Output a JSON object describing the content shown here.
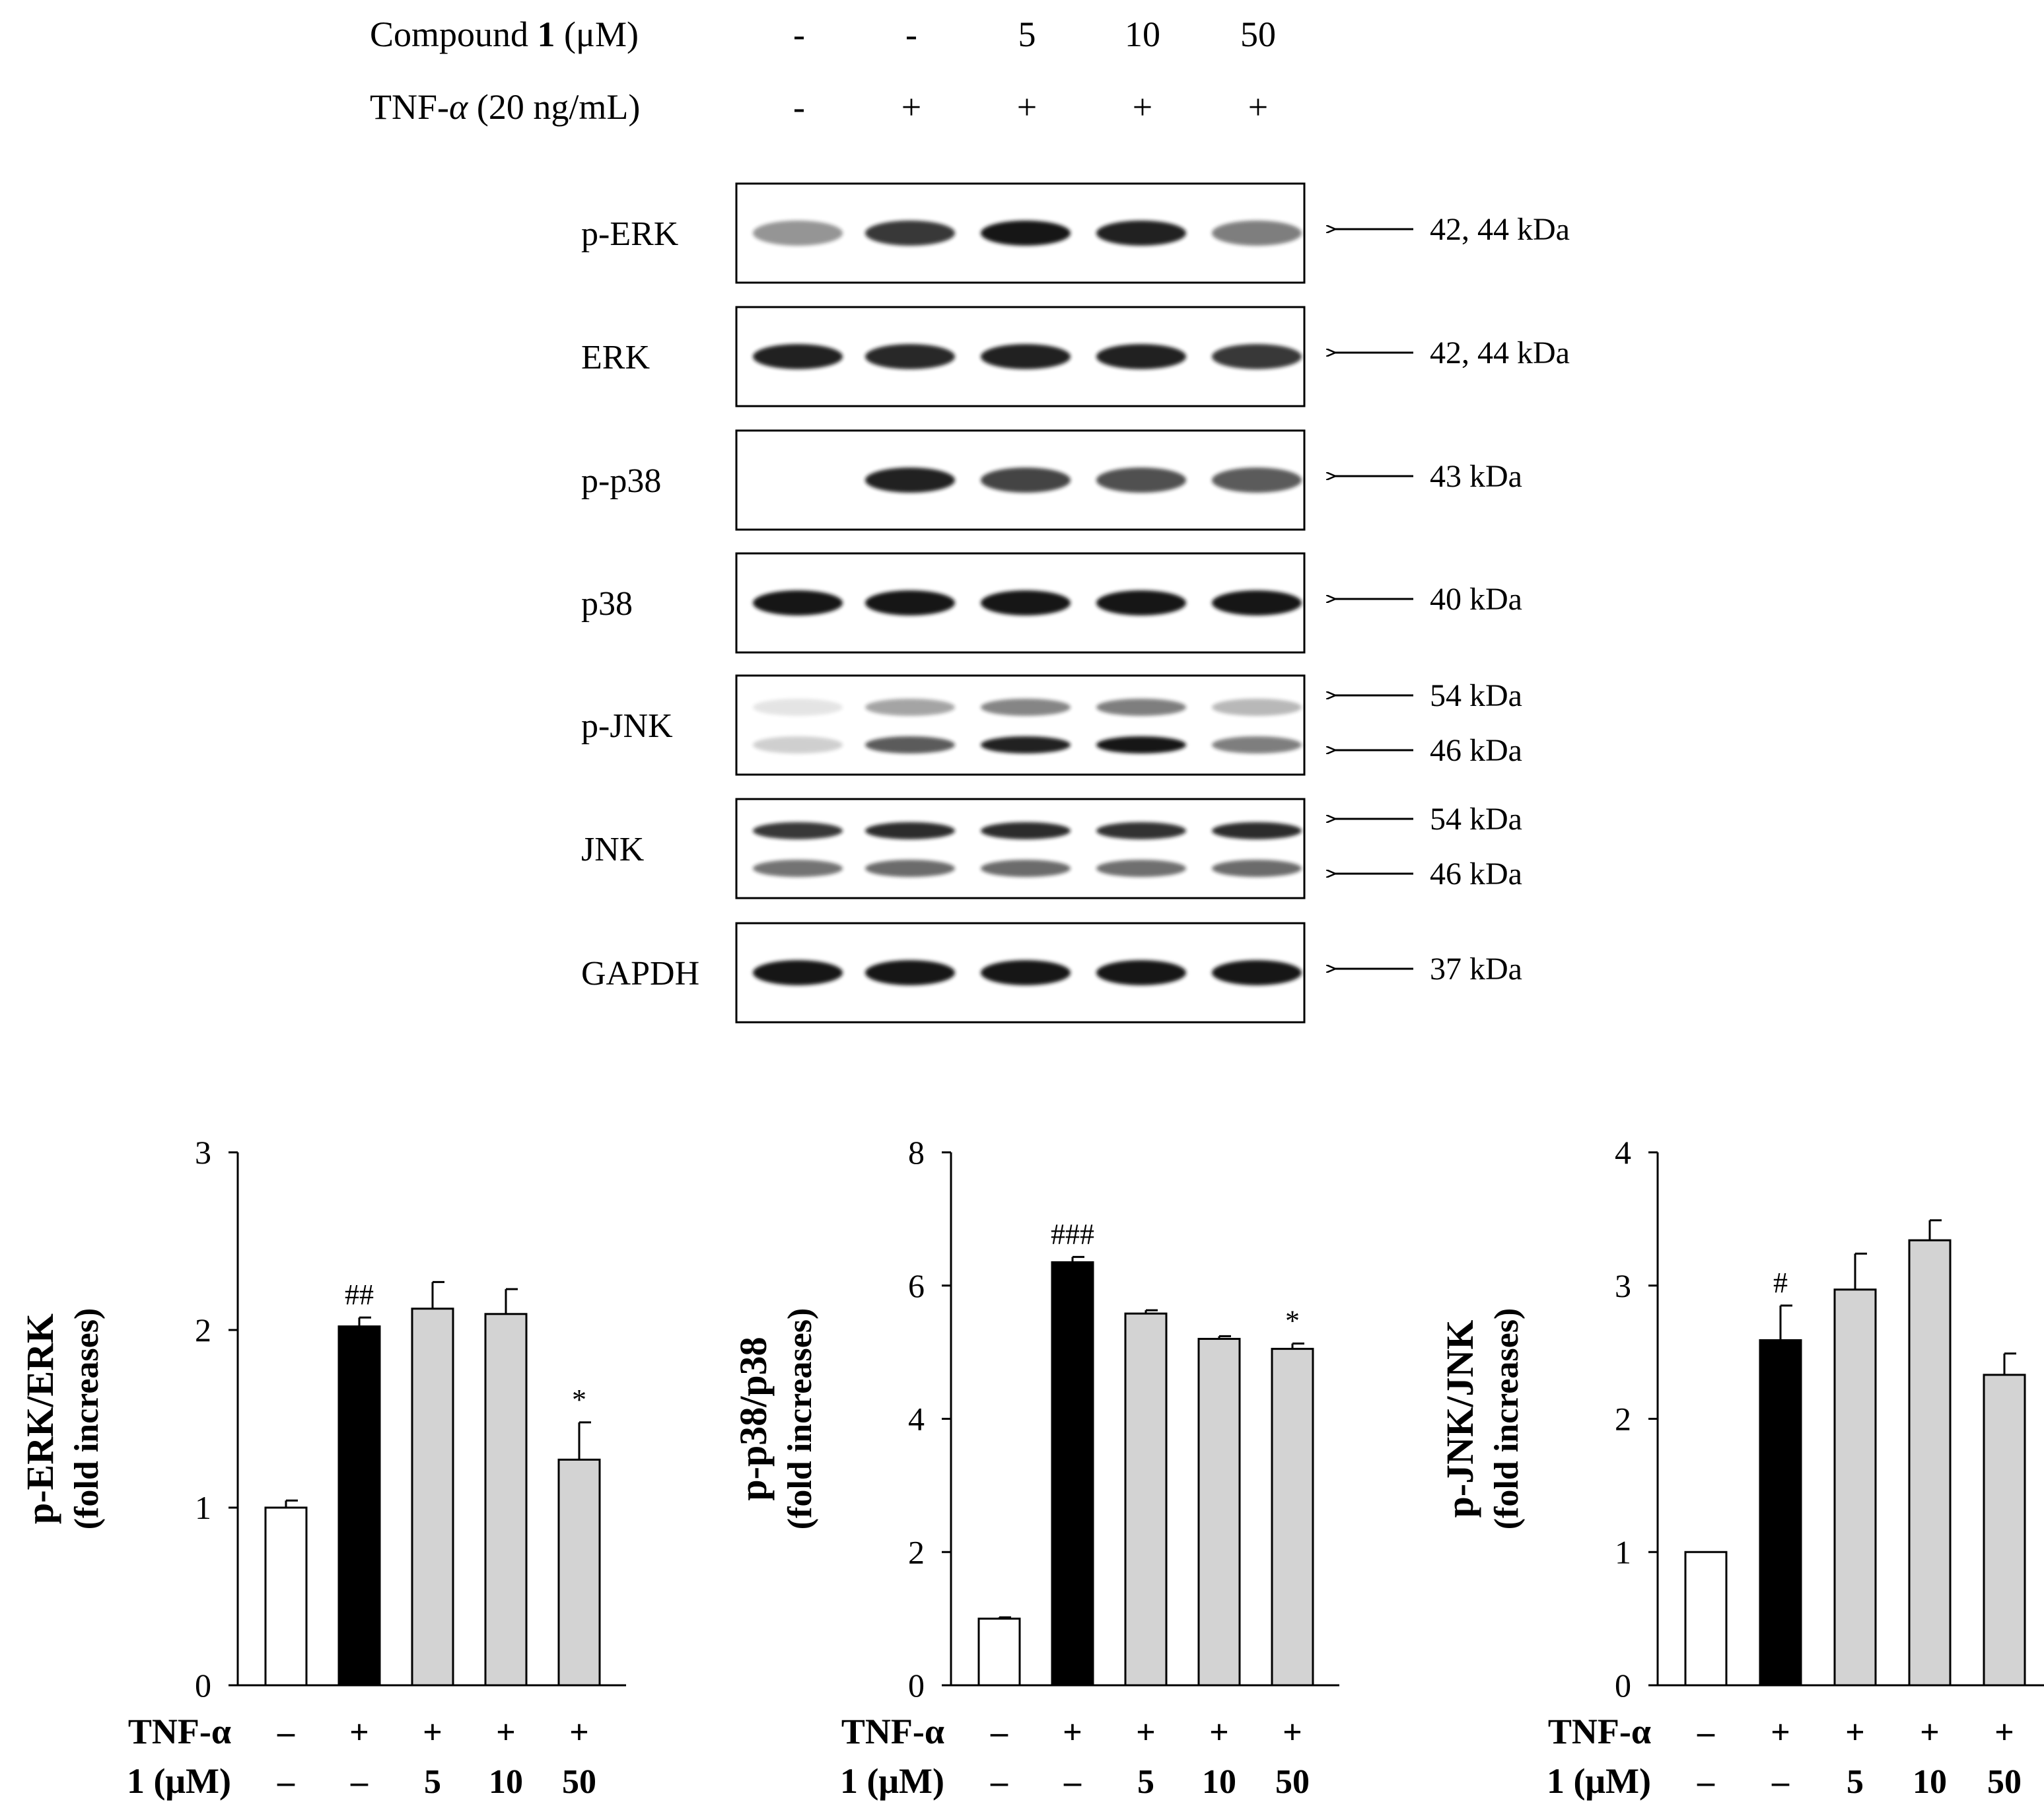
{
  "treatment_header": {
    "rows": [
      {
        "label_parts": [
          "Compound ",
          "1",
          " (μM)"
        ],
        "values": [
          "-",
          "-",
          "5",
          "10",
          "50"
        ]
      },
      {
        "label_parts": [
          "TNF-",
          "α",
          " (20 ng/mL)"
        ],
        "values": [
          "-",
          "+",
          "+",
          "+",
          "+"
        ]
      }
    ]
  },
  "blots": [
    {
      "label": "p-ERK",
      "markers": [
        "42, 44 kDa"
      ],
      "lanes": [
        0.45,
        0.85,
        1.0,
        0.95,
        0.55
      ],
      "bands": 1
    },
    {
      "label": "ERK",
      "markers": [
        "42, 44 kDa"
      ],
      "lanes": [
        0.95,
        0.92,
        0.95,
        0.95,
        0.85
      ],
      "bands": 1
    },
    {
      "label": "p-p38",
      "markers": [
        "43 kDa"
      ],
      "lanes": [
        0.0,
        0.95,
        0.8,
        0.75,
        0.7
      ],
      "bands": 1
    },
    {
      "label": "p38",
      "markers": [
        "40 kDa"
      ],
      "lanes": [
        1.0,
        1.0,
        1.0,
        1.0,
        1.0
      ],
      "bands": 1
    },
    {
      "label": "p-JNK",
      "markers": [
        "54 kDa",
        "46 kDa"
      ],
      "lanes": [
        0.2,
        0.7,
        0.95,
        1.0,
        0.55
      ],
      "bands": 2
    },
    {
      "label": "JNK",
      "markers": [
        "54 kDa",
        "46 kDa"
      ],
      "lanes": [
        0.85,
        0.9,
        0.9,
        0.88,
        0.9
      ],
      "bands": 2
    },
    {
      "label": "GAPDH",
      "markers": [
        "37 kDa"
      ],
      "lanes": [
        1.0,
        1.0,
        1.0,
        1.0,
        1.0
      ],
      "bands": 1
    }
  ],
  "colors": {
    "control": "#ffffff",
    "tnf": "#000000",
    "treated": "#d3d3d3",
    "band": "#141414",
    "axis": "#000000"
  },
  "chart_data": [
    {
      "type": "bar",
      "title": "",
      "ylabel": "p-ERK/ERK",
      "ylabel_sub": "(fold increases)",
      "ylim": [
        0,
        3
      ],
      "yticks": [
        0,
        1,
        2,
        3
      ],
      "categories": [
        "control",
        "TNF-α",
        "TNF-α + 1 (5 μM)",
        "TNF-α + 1 (10 μM)",
        "TNF-α + 1 (50 μM)"
      ],
      "values": [
        1.0,
        2.02,
        2.12,
        2.09,
        1.27
      ],
      "errors": [
        0.04,
        0.05,
        0.15,
        0.14,
        0.21
      ],
      "fills": [
        "control",
        "tnf",
        "treated",
        "treated",
        "treated"
      ],
      "annotations": [
        "",
        "##",
        "",
        "",
        "*"
      ],
      "row_labels": [
        "TNF-α",
        "1 (μM)"
      ],
      "row1": [
        "–",
        "+",
        "+",
        "+",
        "+"
      ],
      "row2": [
        "–",
        "–",
        "5",
        "10",
        "50"
      ]
    },
    {
      "type": "bar",
      "title": "",
      "ylabel": "p-p38/p38",
      "ylabel_sub": "(fold increases)",
      "ylim": [
        0,
        8
      ],
      "yticks": [
        0,
        2,
        4,
        6,
        8
      ],
      "categories": [
        "control",
        "TNF-α",
        "TNF-α + 1 (5 μM)",
        "TNF-α + 1 (10 μM)",
        "TNF-α + 1 (50 μM)"
      ],
      "values": [
        1.0,
        6.35,
        5.58,
        5.2,
        5.05
      ],
      "errors": [
        0.02,
        0.08,
        0.05,
        0.04,
        0.08
      ],
      "fills": [
        "control",
        "tnf",
        "treated",
        "treated",
        "treated"
      ],
      "annotations": [
        "",
        "###",
        "",
        "",
        "*"
      ],
      "row_labels": [
        "TNF-α",
        "1 (μM)"
      ],
      "row1": [
        "–",
        "+",
        "+",
        "+",
        "+"
      ],
      "row2": [
        "–",
        "–",
        "5",
        "10",
        "50"
      ]
    },
    {
      "type": "bar",
      "title": "",
      "ylabel": "p-JNK/JNK",
      "ylabel_sub": "(fold increases)",
      "ylim": [
        0,
        4
      ],
      "yticks": [
        0,
        1,
        2,
        3,
        4
      ],
      "categories": [
        "control",
        "TNF-α",
        "TNF-α + 1 (5 μM)",
        "TNF-α + 1 (10 μM)",
        "TNF-α + 1 (50 μM)"
      ],
      "values": [
        1.0,
        2.59,
        2.97,
        3.34,
        2.33
      ],
      "errors": [
        0.0,
        0.26,
        0.27,
        0.15,
        0.16
      ],
      "fills": [
        "control",
        "tnf",
        "treated",
        "treated",
        "treated"
      ],
      "annotations": [
        "",
        "#",
        "",
        "",
        ""
      ],
      "row_labels": [
        "TNF-α",
        "1 (μM)"
      ],
      "row1": [
        "–",
        "+",
        "+",
        "+",
        "+"
      ],
      "row2": [
        "–",
        "–",
        "5",
        "10",
        "50"
      ]
    }
  ]
}
